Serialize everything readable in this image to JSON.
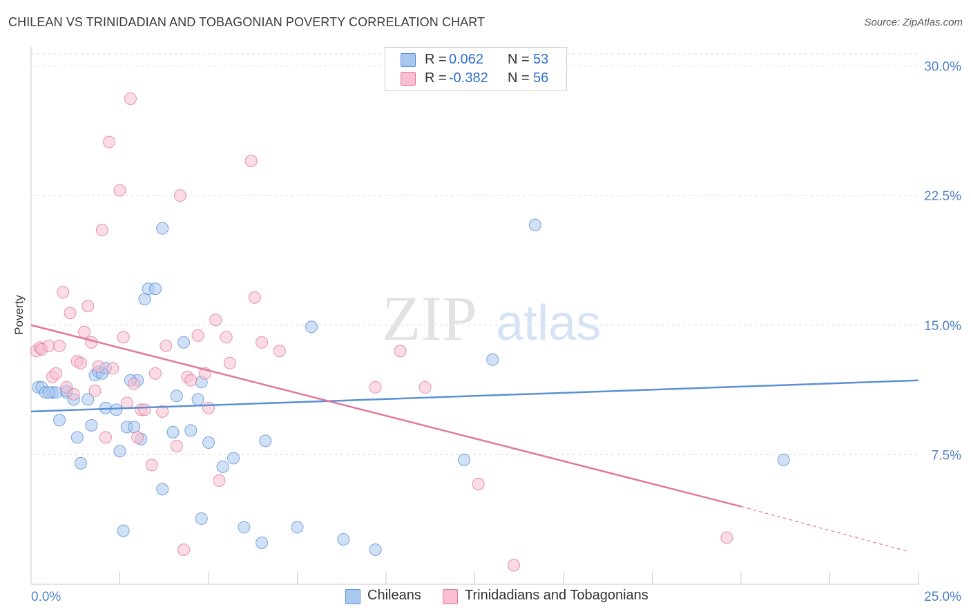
{
  "title": "CHILEAN VS TRINIDADIAN AND TOBAGONIAN POVERTY CORRELATION CHART",
  "source": "Source: ZipAtlas.com",
  "watermark": {
    "zip": "ZIP",
    "atlas": "atlas"
  },
  "legend_top": {
    "rows": [
      {
        "r_label": "R =",
        "r_value": "0.062",
        "n_label": "N =",
        "n_value": "53",
        "color": "#a9c8f0",
        "border": "#5b8fd6"
      },
      {
        "r_label": "R =",
        "r_value": "-0.382",
        "n_label": "N =",
        "n_value": "56",
        "color": "#f7bfd0",
        "border": "#e0789a"
      }
    ]
  },
  "legend_bottom": [
    {
      "label": "Chileans",
      "color": "#a9c8f0",
      "border": "#5b8fd6"
    },
    {
      "label": "Trinidadians and Tobagonians",
      "color": "#f7bfd0",
      "border": "#e0789a"
    }
  ],
  "chart_data": {
    "type": "scatter",
    "xlabel": "",
    "ylabel": "Poverty",
    "xlim": [
      0,
      25
    ],
    "ylim": [
      0,
      30.7
    ],
    "x_tick_labels": [
      "0.0%",
      "25.0%"
    ],
    "y_ticks": [
      7.5,
      15.0,
      22.5,
      30.0
    ],
    "y_tick_labels": [
      "7.5%",
      "15.0%",
      "22.5%",
      "30.0%"
    ],
    "grid": "horizontal-dashed",
    "series": [
      {
        "name": "Chileans",
        "color": "#5b8fd6",
        "fill": "#a9c8f0",
        "trend": {
          "x": [
            0,
            25
          ],
          "y": [
            10.0,
            11.8
          ]
        },
        "points": [
          [
            0.2,
            11.4
          ],
          [
            0.3,
            11.4
          ],
          [
            0.4,
            11.1
          ],
          [
            0.6,
            11.1
          ],
          [
            0.7,
            11.1
          ],
          [
            0.8,
            9.5
          ],
          [
            1.0,
            11.1
          ],
          [
            1.2,
            10.7
          ],
          [
            1.3,
            8.5
          ],
          [
            1.4,
            7.0
          ],
          [
            1.6,
            10.7
          ],
          [
            1.7,
            9.2
          ],
          [
            1.8,
            12.1
          ],
          [
            1.9,
            12.3
          ],
          [
            2.0,
            12.2
          ],
          [
            2.1,
            12.5
          ],
          [
            2.1,
            10.2
          ],
          [
            2.4,
            10.1
          ],
          [
            2.5,
            7.7
          ],
          [
            2.6,
            3.1
          ],
          [
            2.7,
            9.1
          ],
          [
            2.9,
            9.1
          ],
          [
            3.0,
            11.8
          ],
          [
            3.1,
            8.4
          ],
          [
            3.2,
            16.5
          ],
          [
            3.3,
            17.1
          ],
          [
            3.5,
            17.1
          ],
          [
            3.7,
            5.5
          ],
          [
            3.7,
            20.6
          ],
          [
            4.0,
            8.8
          ],
          [
            4.1,
            10.9
          ],
          [
            4.3,
            14.0
          ],
          [
            4.5,
            8.9
          ],
          [
            4.7,
            10.7
          ],
          [
            4.8,
            3.8
          ],
          [
            4.8,
            11.7
          ],
          [
            5.0,
            8.2
          ],
          [
            5.4,
            6.8
          ],
          [
            5.7,
            7.3
          ],
          [
            6.0,
            3.3
          ],
          [
            6.5,
            2.4
          ],
          [
            6.6,
            8.3
          ],
          [
            7.5,
            3.3
          ],
          [
            7.9,
            14.9
          ],
          [
            8.8,
            2.6
          ],
          [
            9.7,
            2.0
          ],
          [
            12.2,
            7.2
          ],
          [
            13.0,
            13.0
          ],
          [
            14.2,
            20.8
          ],
          [
            21.2,
            7.2
          ],
          [
            1.0,
            11.2
          ],
          [
            2.8,
            11.8
          ],
          [
            0.5,
            11.1
          ]
        ]
      },
      {
        "name": "Trinidadians and Tobagonians",
        "color": "#e0789a",
        "fill": "#f7bfd0",
        "trend": {
          "x": [
            0,
            20
          ],
          "y": [
            15.0,
            4.5
          ]
        },
        "trend_dashed": {
          "x": [
            20,
            24.7
          ],
          "y": [
            4.5,
            1.9
          ]
        },
        "points": [
          [
            0.15,
            13.5
          ],
          [
            0.25,
            13.7
          ],
          [
            0.3,
            13.6
          ],
          [
            0.5,
            13.8
          ],
          [
            0.6,
            12.0
          ],
          [
            0.7,
            12.2
          ],
          [
            0.8,
            13.8
          ],
          [
            0.9,
            16.9
          ],
          [
            1.0,
            11.4
          ],
          [
            1.1,
            15.7
          ],
          [
            1.2,
            11.0
          ],
          [
            1.3,
            12.9
          ],
          [
            1.4,
            12.8
          ],
          [
            1.5,
            14.6
          ],
          [
            1.6,
            16.1
          ],
          [
            1.7,
            14.0
          ],
          [
            1.8,
            11.2
          ],
          [
            1.9,
            12.6
          ],
          [
            2.0,
            20.5
          ],
          [
            2.1,
            8.5
          ],
          [
            2.2,
            25.6
          ],
          [
            2.3,
            12.5
          ],
          [
            2.5,
            22.8
          ],
          [
            2.6,
            14.3
          ],
          [
            2.7,
            10.5
          ],
          [
            2.8,
            28.1
          ],
          [
            2.9,
            11.6
          ],
          [
            3.0,
            8.5
          ],
          [
            3.1,
            10.1
          ],
          [
            3.2,
            10.1
          ],
          [
            3.4,
            6.9
          ],
          [
            3.5,
            12.2
          ],
          [
            3.7,
            10.0
          ],
          [
            3.8,
            13.8
          ],
          [
            4.1,
            8.0
          ],
          [
            4.2,
            22.5
          ],
          [
            4.3,
            2.0
          ],
          [
            4.4,
            12.0
          ],
          [
            4.5,
            11.8
          ],
          [
            4.7,
            14.4
          ],
          [
            4.9,
            12.2
          ],
          [
            5.0,
            10.2
          ],
          [
            5.2,
            15.3
          ],
          [
            5.3,
            6.0
          ],
          [
            5.5,
            14.3
          ],
          [
            5.6,
            12.8
          ],
          [
            6.2,
            24.5
          ],
          [
            6.3,
            16.6
          ],
          [
            6.5,
            14.0
          ],
          [
            7.0,
            13.5
          ],
          [
            9.7,
            11.4
          ],
          [
            10.4,
            13.5
          ],
          [
            11.1,
            11.4
          ],
          [
            12.6,
            5.8
          ],
          [
            13.6,
            1.1
          ],
          [
            19.6,
            2.7
          ]
        ]
      }
    ]
  }
}
